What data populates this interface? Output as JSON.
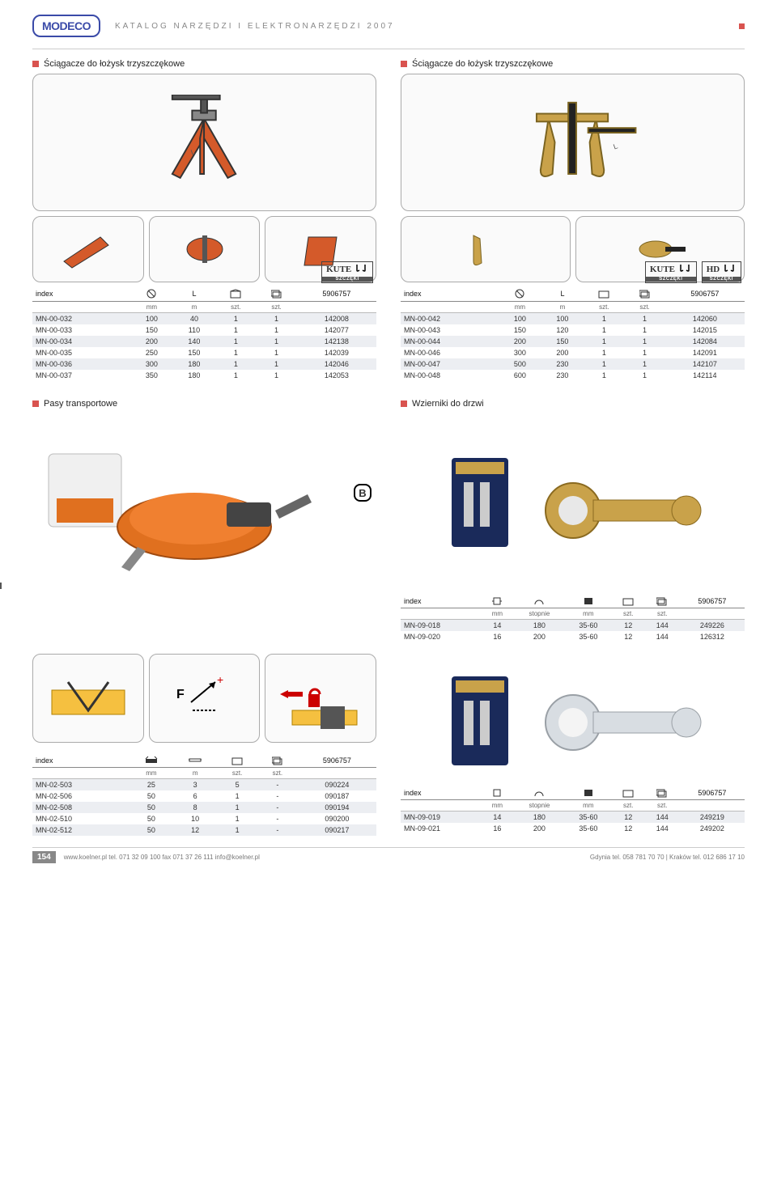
{
  "header": {
    "logo": "MODECO",
    "title": "KATALOG NARZĘDZI I ELEKTRONARZĘDZI 2007"
  },
  "sections": {
    "s1": {
      "title": "Ściągacze do łożysk trzyszczękowe"
    },
    "s2": {
      "title": "Ściągacze do łożysk trzyszczękowe"
    },
    "s3": {
      "title": "Pasy transportowe"
    },
    "s4": {
      "title": "Wzierniki do drzwi"
    }
  },
  "badges": {
    "kute": "KUTE",
    "hd": "HD",
    "sub": "SZCZĘKI"
  },
  "tables": {
    "common_headers": {
      "index": "index",
      "L": "L",
      "barcode": "5906757"
    },
    "sub_units": {
      "mm": "mm",
      "m": "m",
      "szt": "szt."
    },
    "t1": {
      "rows": [
        [
          "MN-00-032",
          "100",
          "40",
          "1",
          "1",
          "142008"
        ],
        [
          "MN-00-033",
          "150",
          "110",
          "1",
          "1",
          "142077"
        ],
        [
          "MN-00-034",
          "200",
          "140",
          "1",
          "1",
          "142138"
        ],
        [
          "MN-00-035",
          "250",
          "150",
          "1",
          "1",
          "142039"
        ],
        [
          "MN-00-036",
          "300",
          "180",
          "1",
          "1",
          "142046"
        ],
        [
          "MN-00-037",
          "350",
          "180",
          "1",
          "1",
          "142053"
        ]
      ]
    },
    "t2": {
      "rows": [
        [
          "MN-00-042",
          "100",
          "100",
          "1",
          "1",
          "142060"
        ],
        [
          "MN-00-043",
          "150",
          "120",
          "1",
          "1",
          "142015"
        ],
        [
          "MN-00-044",
          "200",
          "150",
          "1",
          "1",
          "142084"
        ],
        [
          "MN-00-046",
          "300",
          "200",
          "1",
          "1",
          "142091"
        ],
        [
          "MN-00-047",
          "500",
          "230",
          "1",
          "1",
          "142107"
        ],
        [
          "MN-00-048",
          "600",
          "230",
          "1",
          "1",
          "142114"
        ]
      ]
    },
    "t3": {
      "sub": {
        "stopnie": "stopnie"
      },
      "rows": [
        [
          "MN-09-018",
          "14",
          "180",
          "35-60",
          "12",
          "144",
          "249226"
        ],
        [
          "MN-09-020",
          "16",
          "200",
          "35-60",
          "12",
          "144",
          "126312"
        ]
      ]
    },
    "t4": {
      "rows": [
        [
          "MN-02-503",
          "25",
          "3",
          "5",
          "-",
          "090224"
        ],
        [
          "MN-02-506",
          "50",
          "6",
          "1",
          "-",
          "090187"
        ],
        [
          "MN-02-508",
          "50",
          "8",
          "1",
          "-",
          "090194"
        ],
        [
          "MN-02-510",
          "50",
          "10",
          "1",
          "-",
          "090200"
        ],
        [
          "MN-02-512",
          "50",
          "12",
          "1",
          "-",
          "090217"
        ]
      ]
    },
    "t5": {
      "rows": [
        [
          "MN-09-019",
          "14",
          "180",
          "35-60",
          "12",
          "144",
          "249219"
        ],
        [
          "MN-09-021",
          "16",
          "200",
          "35-60",
          "12",
          "144",
          "249202"
        ]
      ]
    }
  },
  "footer": {
    "page": "154",
    "left": "www.koelner.pl   tel. 071 32 09 100   fax 071 37 26 111   info@koelner.pl",
    "right": "Gdynia tel. 058 781 70 70  |  Kraków tel. 012 686 17 10"
  },
  "colors": {
    "accent": "#d9534f",
    "orange_tool": "#d45a2a",
    "brass": "#c9a24a",
    "zebra": "#eceef2"
  }
}
